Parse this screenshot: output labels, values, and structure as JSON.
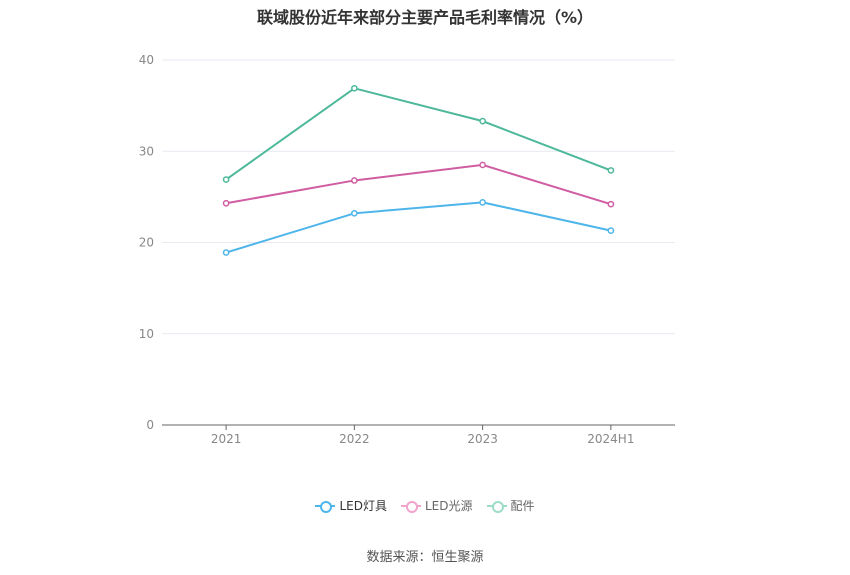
{
  "chart_data": {
    "type": "line",
    "title": "联域股份近年来部分主要产品毛利率情况（%）",
    "categories": [
      "2021",
      "2022",
      "2023",
      "2024H1"
    ],
    "ylim": [
      0,
      40
    ],
    "yticks": [
      0,
      10,
      20,
      30,
      40
    ],
    "grid": true,
    "legend_position": "bottom",
    "series": [
      {
        "name": "LED灯具",
        "color": "#4db5ea",
        "values": [
          18.9,
          23.2,
          24.4,
          21.3
        ]
      },
      {
        "name": "LED光源",
        "color": "#d05ca2",
        "values": [
          24.3,
          26.8,
          28.5,
          24.2
        ]
      },
      {
        "name": "配件",
        "color": "#4db89a",
        "values": [
          26.9,
          36.9,
          33.3,
          27.9
        ]
      }
    ]
  },
  "legend_colors": [
    "#4db5ea",
    "#f0a3cc",
    "#9ddcc7"
  ],
  "source": "数据来源：恒生聚源"
}
